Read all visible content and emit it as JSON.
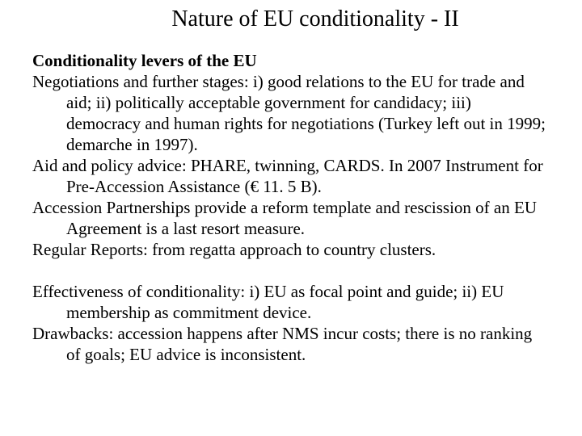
{
  "title": "Nature of EU conditionality - II",
  "subheading": "Conditionality levers of the EU",
  "para1": "Negotiations and further stages: i) good relations to the EU for trade and aid; ii) politically acceptable government for candidacy; iii) democracy and human rights for negotiations (Turkey left out in 1999; demarche in 1997).",
  "para2": "Aid and policy advice: PHARE, twinning, CARDS. In 2007 Instrument for Pre-Accession Assistance (€ 11. 5 B).",
  "para3": "Accession Partnerships provide a reform template and rescission of an EU Agreement is a last resort measure.",
  "para4": "Regular Reports: from regatta approach to country clusters.",
  "para5": "Effectiveness of conditionality: i) EU as focal point and guide; ii) EU membership as commitment device.",
  "para6": "Drawbacks: accession happens after NMS incur costs; there is no ranking of goals; EU advice is inconsistent."
}
